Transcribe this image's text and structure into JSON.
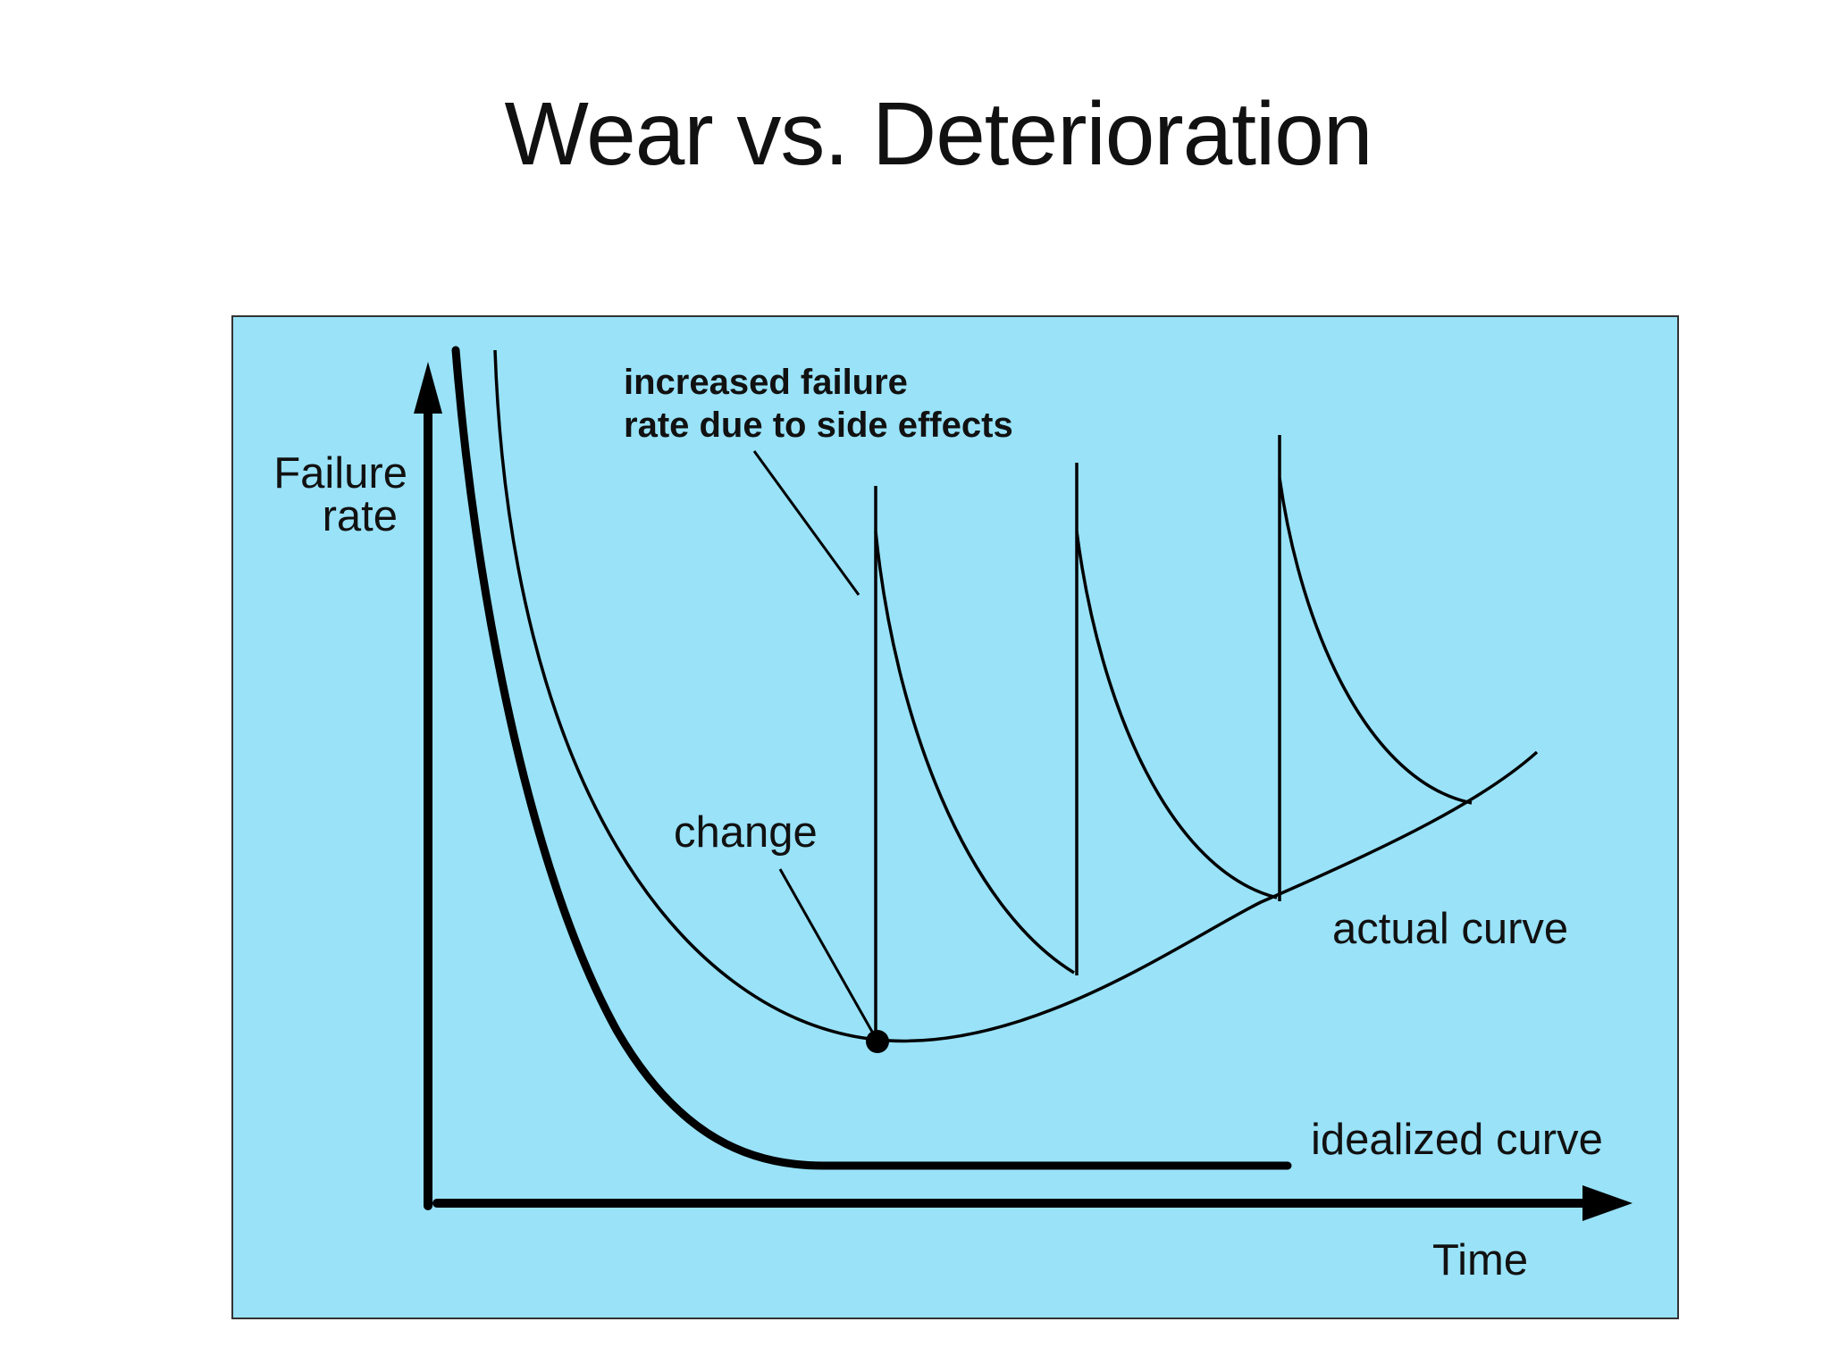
{
  "title": "Wear vs. Deterioration",
  "diagram": {
    "background_color": "#99e2f8",
    "line_color": "#000000",
    "y_axis_label": [
      "Failure",
      "rate"
    ],
    "x_axis_label": "Time",
    "annotation_side_effects": [
      "increased failure",
      "rate due to side effects"
    ],
    "annotation_change": "change",
    "curve_labels": {
      "actual": "actual curve",
      "idealized": "idealized curve"
    }
  }
}
